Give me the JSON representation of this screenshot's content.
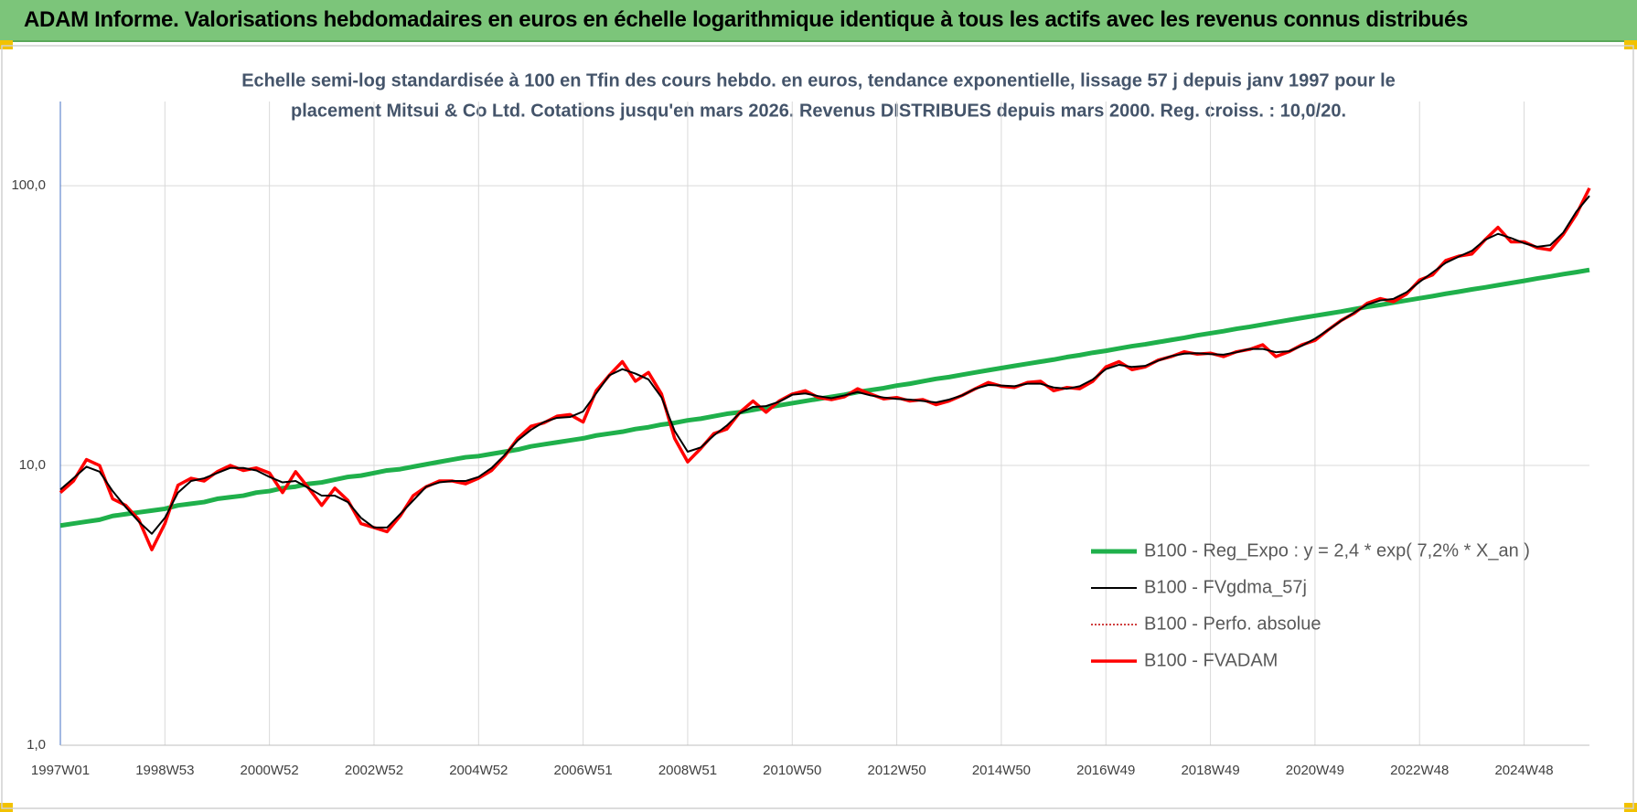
{
  "header": {
    "title": "ADAM Informe. Valorisations hebdomadaires en euros en échelle logarithmique identique à tous les actifs avec les revenus connus distribués"
  },
  "chart_data": {
    "type": "line",
    "title": [
      "Echelle semi-log standardisée à 100 en Tfin des cours hebdo. en euros, tendance exponentielle, lissage 57 j depuis janv 1997 pour le",
      "placement Mitsui & Co Ltd. Cotations jusqu'en mars 2026. Revenus DISTRIBUES depuis mars 2000. Reg. croiss. : 10,0/20."
    ],
    "categories": [
      "1997W01",
      null,
      null,
      null,
      null,
      null,
      null,
      null,
      "1998W53",
      null,
      null,
      null,
      null,
      null,
      null,
      null,
      "2000W52",
      null,
      null,
      null,
      null,
      null,
      null,
      null,
      "2002W52",
      null,
      null,
      null,
      null,
      null,
      null,
      null,
      "2004W52",
      null,
      null,
      null,
      null,
      null,
      null,
      null,
      "2006W51",
      null,
      null,
      null,
      null,
      null,
      null,
      null,
      "2008W51",
      null,
      null,
      null,
      null,
      null,
      null,
      null,
      "2010W50",
      null,
      null,
      null,
      null,
      null,
      null,
      null,
      "2012W50",
      null,
      null,
      null,
      null,
      null,
      null,
      null,
      "2014W50",
      null,
      null,
      null,
      null,
      null,
      null,
      null,
      "2016W49",
      null,
      null,
      null,
      null,
      null,
      null,
      null,
      "2018W49",
      null,
      null,
      null,
      null,
      null,
      null,
      null,
      "2020W49",
      null,
      null,
      null,
      null,
      null,
      null,
      null,
      "2022W48",
      null,
      null,
      null,
      null,
      null,
      null,
      null,
      "2024W48",
      null,
      null,
      null,
      null,
      null
    ],
    "log_scale": true,
    "ylim": [
      1,
      200
    ],
    "yticks": [
      {
        "value": 1,
        "label": "1,0"
      },
      {
        "value": 10,
        "label": "10,0"
      },
      {
        "value": 100,
        "label": "100,0"
      }
    ],
    "grid": true,
    "legend": "right",
    "series": [
      {
        "name": "B100 - Reg_Expo : y = 2,4 * exp( 7,2% *  X_an )",
        "color": "#1fb04b",
        "width": 5,
        "style": "solid",
        "values": [
          6.1,
          6.2,
          6.3,
          6.4,
          6.6,
          6.7,
          6.8,
          6.9,
          7.0,
          7.2,
          7.3,
          7.4,
          7.6,
          7.7,
          7.8,
          8.0,
          8.1,
          8.3,
          8.4,
          8.6,
          8.7,
          8.9,
          9.1,
          9.2,
          9.4,
          9.6,
          9.7,
          9.9,
          10.1,
          10.3,
          10.5,
          10.7,
          10.8,
          11.0,
          11.2,
          11.4,
          11.7,
          11.9,
          12.1,
          12.3,
          12.5,
          12.8,
          13.0,
          13.2,
          13.5,
          13.7,
          14.0,
          14.2,
          14.5,
          14.7,
          15.0,
          15.3,
          15.5,
          15.8,
          16.1,
          16.4,
          16.7,
          17.0,
          17.3,
          17.6,
          17.9,
          18.3,
          18.6,
          18.9,
          19.3,
          19.6,
          20.0,
          20.4,
          20.7,
          21.1,
          21.5,
          21.9,
          22.3,
          22.7,
          23.1,
          23.5,
          23.9,
          24.4,
          24.8,
          25.3,
          25.7,
          26.2,
          26.7,
          27.1,
          27.6,
          28.1,
          28.6,
          29.2,
          29.7,
          30.2,
          30.8,
          31.3,
          31.9,
          32.5,
          33.1,
          33.7,
          34.3,
          34.9,
          35.5,
          36.2,
          36.9,
          37.5,
          38.2,
          38.9,
          39.6,
          40.3,
          41.1,
          41.8,
          42.6,
          43.3,
          44.1,
          44.9,
          45.7,
          46.6,
          47.4,
          48.3,
          49.1,
          50.0
        ]
      },
      {
        "name": "B100 - FVgdma_57j",
        "color": "#000000",
        "width": 2,
        "style": "solid",
        "values": [
          8.2,
          9.0,
          9.9,
          9.5,
          8.1,
          7.1,
          6.3,
          5.7,
          6.5,
          8.0,
          8.8,
          9.0,
          9.4,
          9.8,
          9.8,
          9.6,
          9.1,
          8.7,
          8.8,
          8.3,
          7.8,
          7.8,
          7.4,
          6.5,
          6.0,
          6.0,
          6.7,
          7.5,
          8.4,
          8.7,
          8.8,
          8.8,
          9.1,
          9.8,
          10.9,
          12.3,
          13.4,
          14.3,
          14.8,
          14.9,
          15.6,
          18.1,
          21.0,
          22.1,
          21.3,
          20.3,
          17.5,
          13.3,
          11.2,
          11.6,
          12.8,
          13.9,
          15.4,
          16.2,
          16.3,
          16.9,
          17.9,
          18.1,
          17.7,
          17.4,
          17.8,
          18.3,
          17.8,
          17.5,
          17.3,
          17.2,
          17.0,
          16.8,
          17.2,
          17.8,
          18.8,
          19.4,
          19.3,
          19.2,
          19.6,
          19.6,
          19.0,
          18.8,
          19.2,
          20.3,
          22.1,
          22.9,
          22.5,
          22.7,
          23.7,
          24.6,
          25.1,
          25.2,
          25.0,
          24.9,
          25.4,
          26.1,
          26.1,
          25.4,
          25.6,
          26.8,
          28.4,
          30.5,
          32.9,
          35.2,
          37.6,
          38.9,
          39.4,
          41.6,
          45.3,
          49.0,
          53.0,
          55.8,
          58.5,
          64.0,
          67.3,
          65.0,
          62.3,
          60.5,
          61.3,
          68.0,
          80.8,
          92.0
        ]
      },
      {
        "name": "B100 - Perfo. absolue",
        "color": "#c00000",
        "width": 1.5,
        "style": "dotted",
        "values": [
          8.0,
          8.8,
          10.5,
          10.0,
          7.6,
          7.2,
          6.4,
          5.0,
          6.2,
          8.5,
          9.0,
          8.8,
          9.5,
          10.0,
          9.6,
          9.8,
          9.4,
          8.0,
          9.5,
          8.3,
          7.2,
          8.3,
          7.5,
          6.2,
          6.0,
          5.8,
          6.6,
          7.8,
          8.4,
          8.8,
          8.8,
          8.6,
          9.0,
          9.6,
          10.8,
          12.5,
          13.8,
          14.2,
          15.0,
          15.2,
          14.3,
          18.5,
          21.0,
          23.5,
          20.0,
          21.5,
          18.0,
          12.5,
          10.3,
          11.5,
          13.0,
          13.5,
          15.5,
          17.0,
          15.5,
          17.0,
          18.0,
          18.5,
          17.5,
          17.2,
          17.6,
          18.8,
          18.0,
          17.3,
          17.5,
          17.0,
          17.2,
          16.5,
          17.0,
          17.8,
          18.8,
          19.8,
          19.2,
          19.0,
          19.8,
          20.0,
          18.5,
          19.0,
          18.8,
          20.0,
          22.5,
          23.5,
          22.0,
          22.5,
          23.8,
          24.5,
          25.5,
          25.0,
          25.2,
          24.5,
          25.5,
          26.0,
          27.0,
          24.5,
          25.5,
          27.0,
          28.0,
          30.5,
          33.0,
          35.0,
          38.0,
          39.5,
          38.5,
          41.0,
          46.0,
          48.0,
          54.0,
          56.0,
          57.0,
          64.0,
          71.0,
          63.0,
          63.0,
          60.0,
          59.0,
          67.0,
          79.0,
          98.0
        ]
      },
      {
        "name": "B100 - FVADAM",
        "color": "#ff0000",
        "width": 3.5,
        "style": "solid",
        "values": [
          8.0,
          8.8,
          10.5,
          10.0,
          7.6,
          7.2,
          6.4,
          5.0,
          6.2,
          8.5,
          9.0,
          8.8,
          9.5,
          10.0,
          9.6,
          9.8,
          9.4,
          8.0,
          9.5,
          8.3,
          7.2,
          8.3,
          7.5,
          6.2,
          6.0,
          5.8,
          6.6,
          7.8,
          8.4,
          8.8,
          8.8,
          8.6,
          9.0,
          9.6,
          10.8,
          12.5,
          13.8,
          14.2,
          15.0,
          15.2,
          14.3,
          18.5,
          21.0,
          23.5,
          20.0,
          21.5,
          18.0,
          12.5,
          10.3,
          11.5,
          13.0,
          13.5,
          15.5,
          17.0,
          15.5,
          17.0,
          18.0,
          18.5,
          17.5,
          17.2,
          17.6,
          18.8,
          18.0,
          17.3,
          17.5,
          17.0,
          17.2,
          16.5,
          17.0,
          17.8,
          18.8,
          19.8,
          19.2,
          19.0,
          19.8,
          20.0,
          18.5,
          19.0,
          18.8,
          20.0,
          22.5,
          23.5,
          22.0,
          22.5,
          23.8,
          24.5,
          25.5,
          25.0,
          25.2,
          24.5,
          25.5,
          26.0,
          27.0,
          24.5,
          25.5,
          27.0,
          28.0,
          30.5,
          33.0,
          35.0,
          38.0,
          39.5,
          38.5,
          41.0,
          46.0,
          48.0,
          54.0,
          56.0,
          57.0,
          64.0,
          71.0,
          63.0,
          63.0,
          60.0,
          59.0,
          67.0,
          79.0,
          98.0
        ]
      }
    ]
  }
}
